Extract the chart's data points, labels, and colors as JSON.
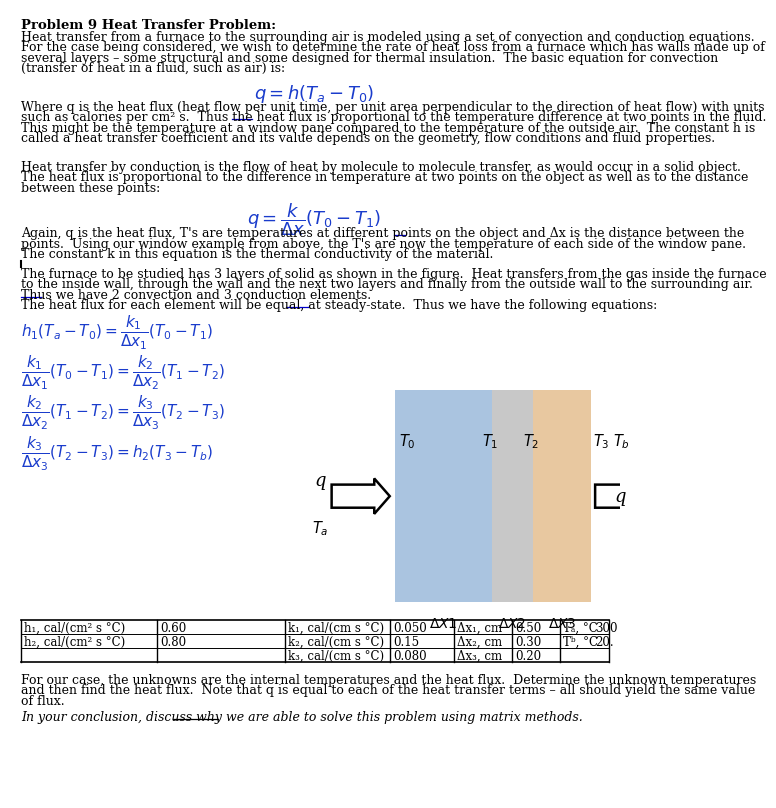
{
  "title": "Problem 9 Heat Transfer Problem:",
  "bg_color": "#ffffff",
  "text_color": "#000000",
  "eq_color": "#1a3ccc",
  "underline_color": "#0000cc",
  "layer1_color": "#aac4e0",
  "layer2_color": "#c8c8c8",
  "layer3_color": "#e8c8a0",
  "p1_lines": [
    "Heat transfer from a furnace to the surrounding air is modeled using a set of convection and conduction equations.",
    "For the case being considered, we wish to determine the rate of heat loss from a furnace which has walls made up of",
    "several layers – some structural and some designed for thermal insulation.  The basic equation for convection",
    "(transfer of heat in a fluid, such as air) is:"
  ],
  "p2_lines": [
    "Where q is the heat flux (heat flow per unit time, per unit area perpendicular to the direction of heat flow) with units",
    "such as calories per cm² s.  Thus the heat flux is proportional to the temperature difference at two points in the fluid.",
    "This might be the temperature at a window pane compared to the temperature of the outside air.  The constant h is",
    "called a heat transfer coefficient and its value depends on the geometry, flow conditions and fluid properties."
  ],
  "p3_lines": [
    "Heat transfer by conduction is the flow of heat by molecule to molecule transfer, as would occur in a solid object.",
    "The heat flux is proportional to the difference in temperature at two points on the object as well as to the distance",
    "between these points:"
  ],
  "p4_lines": [
    "Again, q is the heat flux, T's are temperatures at different points on the object and Δx is the distance between the",
    "points.  Using our window example from above, the T's are now the temperature of each side of the window pane.",
    "The constant k in this equation is the thermal conductivity of the material."
  ],
  "p5_lines": [
    "The furnace to be studied has 3 layers of solid as shown in the figure.  Heat transfers from the gas inside the furnace",
    "to the inside wall, through the wall and the next two layers and finally from the outside wall to the surrounding air.",
    "Thus we have 2 convection and 3 conduction elements.",
    "The heat flux for each element will be equal, at steady-state.  Thus we have the following equations:"
  ],
  "p6_lines": [
    "For our case, the unknowns are the internal temperatures and the heat flux.  Determine the unknown temperatures",
    "and then find the heat flux.  Note that q is equal to each of the heat transfer terms – all should yield the same value",
    "of flux."
  ],
  "italic_line": "In your conclusion, discuss why we are able to solve this problem using matrix methods."
}
